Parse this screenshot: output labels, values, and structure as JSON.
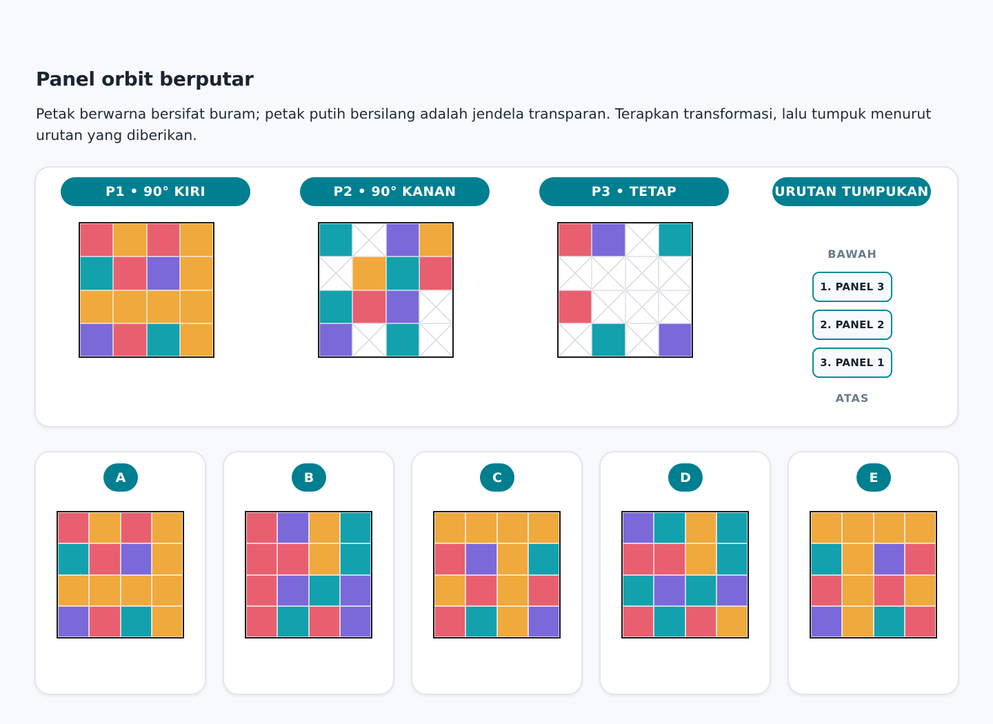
{
  "header": {
    "title": "Panel orbit berputar",
    "description": "Petak berwarna bersifat buram; petak putih bersilang adalah jendela transparan. Terapkan transformasi, lalu tumpuk menurut urutan yang diberikan."
  },
  "colors": {
    "accent": "#007f91",
    "pink": "#e86070",
    "orange": "#f0a93c",
    "teal": "#13a1ad",
    "violet": "#7b69d9",
    "window": "#ffffff"
  },
  "legend_codes": {
    "p": "pink",
    "o": "orange",
    "t": "teal",
    "v": "violet",
    "w": "transparent-window"
  },
  "panels": [
    {
      "label": "P1 • 90° KIRI",
      "cells": [
        [
          "p",
          "o",
          "p",
          "o"
        ],
        [
          "t",
          "p",
          "v",
          "o"
        ],
        [
          "o",
          "o",
          "o",
          "o"
        ],
        [
          "v",
          "p",
          "t",
          "o"
        ]
      ]
    },
    {
      "label": "P2 • 90° KANAN",
      "cells": [
        [
          "t",
          "w",
          "v",
          "o"
        ],
        [
          "w",
          "o",
          "t",
          "p"
        ],
        [
          "t",
          "p",
          "v",
          "w"
        ],
        [
          "v",
          "w",
          "t",
          "w"
        ]
      ]
    },
    {
      "label": "P3 • TETAP",
      "cells": [
        [
          "p",
          "v",
          "w",
          "t"
        ],
        [
          "w",
          "w",
          "w",
          "w"
        ],
        [
          "p",
          "w",
          "w",
          "w"
        ],
        [
          "w",
          "t",
          "w",
          "v"
        ]
      ]
    }
  ],
  "stack": {
    "title": "URUTAN TUMPUKAN",
    "bottom_label": "BAWAH",
    "top_label": "ATAS",
    "items": [
      "1. PANEL 3",
      "2. PANEL 2",
      "3. PANEL 1"
    ]
  },
  "options": [
    {
      "letter": "A",
      "cells": [
        [
          "p",
          "o",
          "p",
          "o"
        ],
        [
          "t",
          "p",
          "v",
          "o"
        ],
        [
          "o",
          "o",
          "o",
          "o"
        ],
        [
          "v",
          "p",
          "t",
          "o"
        ]
      ]
    },
    {
      "letter": "B",
      "cells": [
        [
          "p",
          "v",
          "o",
          "t"
        ],
        [
          "p",
          "p",
          "o",
          "t"
        ],
        [
          "p",
          "v",
          "t",
          "v"
        ],
        [
          "p",
          "t",
          "p",
          "v"
        ]
      ]
    },
    {
      "letter": "C",
      "cells": [
        [
          "o",
          "o",
          "o",
          "o"
        ],
        [
          "p",
          "v",
          "o",
          "t"
        ],
        [
          "o",
          "p",
          "o",
          "p"
        ],
        [
          "p",
          "t",
          "o",
          "v"
        ]
      ]
    },
    {
      "letter": "D",
      "cells": [
        [
          "v",
          "t",
          "o",
          "t"
        ],
        [
          "p",
          "p",
          "o",
          "t"
        ],
        [
          "t",
          "v",
          "t",
          "v"
        ],
        [
          "p",
          "t",
          "p",
          "o"
        ]
      ]
    },
    {
      "letter": "E",
      "cells": [
        [
          "o",
          "o",
          "o",
          "o"
        ],
        [
          "t",
          "o",
          "v",
          "p"
        ],
        [
          "p",
          "o",
          "p",
          "o"
        ],
        [
          "v",
          "o",
          "t",
          "p"
        ]
      ]
    }
  ]
}
